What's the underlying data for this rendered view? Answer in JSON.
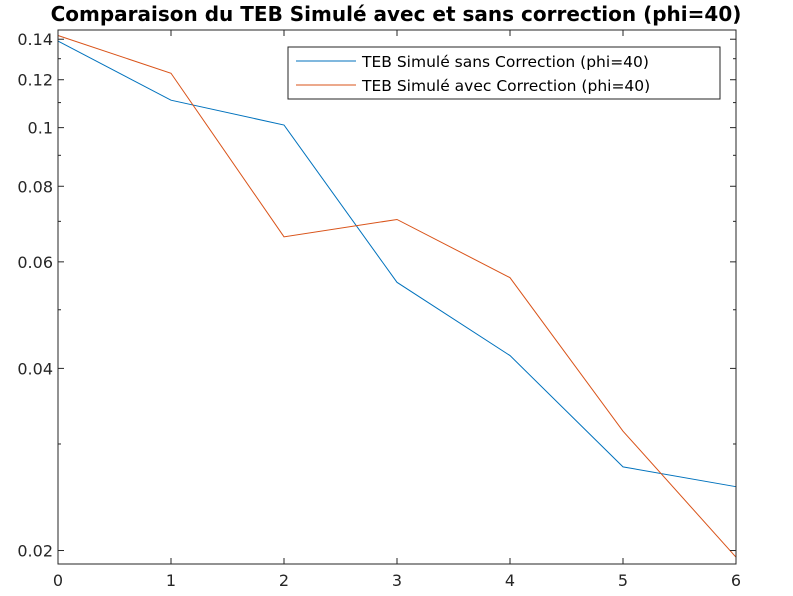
{
  "chart_data": {
    "type": "line",
    "title": "Comparaison du TEB Simulé avec et sans correction (phi=40)",
    "xlabel": "",
    "ylabel": "",
    "x": [
      0,
      1,
      2,
      3,
      4,
      5,
      6
    ],
    "xlim": [
      0,
      6
    ],
    "ylim": [
      0.019,
      0.145
    ],
    "yscale": "log",
    "x_ticks": [
      "0",
      "1",
      "2",
      "3",
      "4",
      "5",
      "6"
    ],
    "y_ticks": [
      {
        "value": 0.02,
        "label": "0.02"
      },
      {
        "value": 0.04,
        "label": "0.04"
      },
      {
        "value": 0.06,
        "label": "0.06"
      },
      {
        "value": 0.08,
        "label": "0.08"
      },
      {
        "value": 0.1,
        "label": "0.1"
      },
      {
        "value": 0.12,
        "label": "0.12"
      },
      {
        "value": 0.14,
        "label": "0.14"
      }
    ],
    "grid": false,
    "legend_position": "top-right",
    "series": [
      {
        "name": "TEB Simulé sans Correction (phi=40)",
        "color": "#0072bd",
        "values": [
          0.139,
          0.111,
          0.101,
          0.0555,
          0.042,
          0.0275,
          0.0255
        ]
      },
      {
        "name": "TEB Simulé avec Correction (phi=40)",
        "color": "#d95319",
        "values": [
          0.142,
          0.123,
          0.066,
          0.0705,
          0.0565,
          0.0315,
          0.0195
        ]
      }
    ]
  }
}
